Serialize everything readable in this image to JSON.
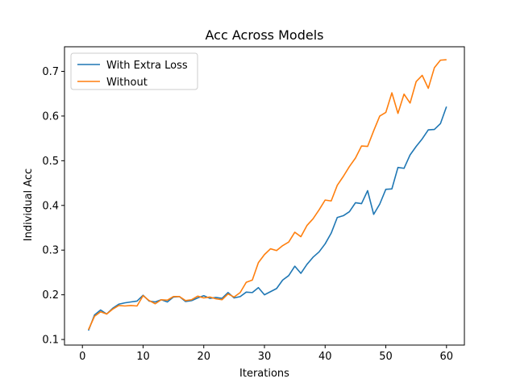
{
  "chart_data": {
    "type": "line",
    "title": "Acc Across Models",
    "xlabel": "Iterations",
    "ylabel": "Individual Acc",
    "xlim": [
      -2.95,
      62.95
    ],
    "ylim": [
      0.0875,
      0.755
    ],
    "xticks": [
      0,
      10,
      20,
      30,
      40,
      50,
      60
    ],
    "yticks": [
      0.1,
      0.2,
      0.3,
      0.4,
      0.5,
      0.6,
      0.7
    ],
    "grid": false,
    "legend_position": "upper-left",
    "x": [
      1,
      2,
      3,
      4,
      5,
      6,
      7,
      8,
      9,
      10,
      11,
      12,
      13,
      14,
      15,
      16,
      17,
      18,
      19,
      20,
      21,
      22,
      23,
      24,
      25,
      26,
      27,
      28,
      29,
      30,
      31,
      32,
      33,
      34,
      35,
      36,
      37,
      38,
      39,
      40,
      41,
      42,
      43,
      44,
      45,
      46,
      47,
      48,
      49,
      50,
      51,
      52,
      53,
      54,
      55,
      56,
      57,
      58,
      59,
      60
    ],
    "series": [
      {
        "name": "With Extra Loss",
        "color": "#1f77b4",
        "values": [
          0.12,
          0.155,
          0.166,
          0.157,
          0.17,
          0.179,
          0.182,
          0.184,
          0.186,
          0.199,
          0.186,
          0.184,
          0.189,
          0.184,
          0.195,
          0.196,
          0.185,
          0.187,
          0.193,
          0.198,
          0.192,
          0.194,
          0.192,
          0.205,
          0.193,
          0.196,
          0.206,
          0.205,
          0.216,
          0.2,
          0.207,
          0.214,
          0.233,
          0.243,
          0.264,
          0.248,
          0.268,
          0.284,
          0.296,
          0.314,
          0.338,
          0.373,
          0.377,
          0.386,
          0.406,
          0.404,
          0.433,
          0.38,
          0.403,
          0.436,
          0.437,
          0.485,
          0.483,
          0.513,
          0.532,
          0.549,
          0.569,
          0.57,
          0.583,
          0.621
        ]
      },
      {
        "name": "Without",
        "color": "#ff7f0e",
        "values": [
          0.122,
          0.152,
          0.162,
          0.157,
          0.168,
          0.176,
          0.175,
          0.176,
          0.175,
          0.198,
          0.187,
          0.18,
          0.189,
          0.188,
          0.196,
          0.196,
          0.187,
          0.189,
          0.197,
          0.193,
          0.195,
          0.191,
          0.189,
          0.202,
          0.195,
          0.205,
          0.228,
          0.233,
          0.272,
          0.29,
          0.303,
          0.299,
          0.31,
          0.318,
          0.34,
          0.33,
          0.355,
          0.37,
          0.39,
          0.412,
          0.41,
          0.445,
          0.465,
          0.487,
          0.506,
          0.533,
          0.532,
          0.567,
          0.6,
          0.608,
          0.652,
          0.606,
          0.649,
          0.629,
          0.677,
          0.691,
          0.662,
          0.708,
          0.725,
          0.726
        ]
      }
    ]
  }
}
